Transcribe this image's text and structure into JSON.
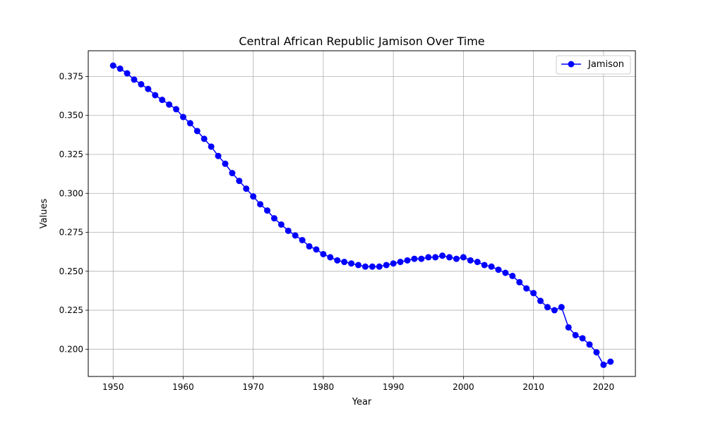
{
  "chart_data": {
    "type": "line",
    "title": "Central African Republic Jamison Over Time",
    "xlabel": "Year",
    "ylabel": "Values",
    "xlim": [
      1946.45,
      2024.55
    ],
    "ylim": [
      0.1825,
      0.3915
    ],
    "xticks": [
      1950,
      1960,
      1970,
      1980,
      1990,
      2000,
      2010,
      2020
    ],
    "yticks": [
      0.2,
      0.225,
      0.25,
      0.275,
      0.3,
      0.325,
      0.35,
      0.375
    ],
    "ytick_labels": [
      "0.200",
      "0.225",
      "0.250",
      "0.275",
      "0.300",
      "0.325",
      "0.350",
      "0.375"
    ],
    "grid": true,
    "legend_position": "top-right",
    "series": [
      {
        "name": "Jamison",
        "color": "#0000ff",
        "marker": "circle",
        "x": [
          1950,
          1951,
          1952,
          1953,
          1954,
          1955,
          1956,
          1957,
          1958,
          1959,
          1960,
          1961,
          1962,
          1963,
          1964,
          1965,
          1966,
          1967,
          1968,
          1969,
          1970,
          1971,
          1972,
          1973,
          1974,
          1975,
          1976,
          1977,
          1978,
          1979,
          1980,
          1981,
          1982,
          1983,
          1984,
          1985,
          1986,
          1987,
          1988,
          1989,
          1990,
          1991,
          1992,
          1993,
          1994,
          1995,
          1996,
          1997,
          1998,
          1999,
          2000,
          2001,
          2002,
          2003,
          2004,
          2005,
          2006,
          2007,
          2008,
          2009,
          2010,
          2011,
          2012,
          2013,
          2014,
          2015,
          2016,
          2017,
          2018,
          2019,
          2020,
          2021
        ],
        "y": [
          0.382,
          0.38,
          0.377,
          0.373,
          0.37,
          0.367,
          0.363,
          0.36,
          0.357,
          0.354,
          0.349,
          0.345,
          0.34,
          0.335,
          0.33,
          0.324,
          0.319,
          0.313,
          0.308,
          0.303,
          0.298,
          0.293,
          0.289,
          0.284,
          0.28,
          0.276,
          0.273,
          0.27,
          0.266,
          0.264,
          0.261,
          0.259,
          0.257,
          0.256,
          0.255,
          0.254,
          0.253,
          0.253,
          0.253,
          0.254,
          0.255,
          0.256,
          0.257,
          0.258,
          0.258,
          0.259,
          0.259,
          0.26,
          0.259,
          0.258,
          0.259,
          0.257,
          0.256,
          0.254,
          0.253,
          0.251,
          0.249,
          0.247,
          0.243,
          0.239,
          0.236,
          0.231,
          0.227,
          0.225,
          0.227,
          0.214,
          0.209,
          0.207,
          0.203,
          0.198,
          0.19,
          0.192
        ]
      }
    ]
  }
}
